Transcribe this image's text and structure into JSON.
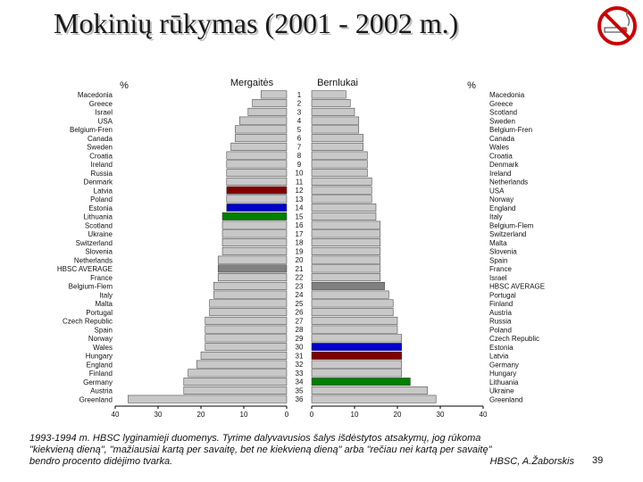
{
  "title": "Mokinių rūkymas (2001 - 2002 m.)",
  "icons": {
    "corner": "no-smoking-icon"
  },
  "colors": {
    "bar": "#c8c8c8",
    "average": "#808080",
    "latvia": "#800000",
    "estonia": "#0000cc",
    "lithuania": "#008000",
    "frame": "#000000"
  },
  "chart_data": {
    "type": "bar",
    "orientation": "horizontal",
    "ranks": [
      1,
      2,
      3,
      4,
      5,
      6,
      7,
      8,
      9,
      10,
      11,
      12,
      13,
      14,
      15,
      16,
      17,
      18,
      19,
      20,
      21,
      22,
      23,
      24,
      25,
      26,
      27,
      28,
      29,
      30,
      31,
      32,
      33,
      34,
      35,
      36
    ],
    "unit_label": "%",
    "xlim": [
      0,
      40
    ],
    "xticks": [
      0,
      10,
      20,
      30,
      40
    ],
    "panels": [
      {
        "name": "Mergaitės",
        "direction": "left",
        "categories": [
          "Macedonia",
          "Greece",
          "Israel",
          "USA",
          "Belgium-Fren",
          "Canada",
          "Sweden",
          "Croatia",
          "Ireland",
          "Russia",
          "Denmark",
          "Latvia",
          "Poland",
          "Estonia",
          "Lithuania",
          "Scotland",
          "Ukraine",
          "Switzerland",
          "Slovenia",
          "Netherlands",
          "HBSC AVERAGE",
          "France",
          "Belgium-Flem",
          "Italy",
          "Malta",
          "Portugal",
          "Czech Republic",
          "Spain",
          "Norway",
          "Wales",
          "Hungary",
          "England",
          "Finland",
          "Germany",
          "Austria",
          "Greenland"
        ],
        "values": [
          6,
          8,
          9,
          11,
          12,
          12,
          13,
          14,
          14,
          14,
          14,
          14,
          14,
          14,
          15,
          15,
          15,
          15,
          15,
          16,
          16,
          16,
          17,
          17,
          18,
          18,
          19,
          19,
          19,
          19,
          20,
          21,
          23,
          24,
          24,
          37
        ],
        "highlights": {
          "Latvia": "latvia",
          "Estonia": "estonia",
          "Lithuania": "lithuania",
          "HBSC AVERAGE": "average"
        }
      },
      {
        "name": "Bernlukai",
        "direction": "right",
        "categories": [
          "Macedonia",
          "Greece",
          "Scotland",
          "Sweden",
          "Belgium-Fren",
          "Canada",
          "Wales",
          "Croatia",
          "Denmark",
          "Ireland",
          "Netherlands",
          "USA",
          "Norway",
          "England",
          "Italy",
          "Belgium-Flem",
          "Switzerland",
          "Malta",
          "Slovenia",
          "Spain",
          "France",
          "Israel",
          "HBSC AVERAGE",
          "Portugal",
          "Finland",
          "Austria",
          "Russia",
          "Poland",
          "Czech Republic",
          "Estonia",
          "Latvia",
          "Germany",
          "Hungary",
          "Lithuania",
          "Ukraine",
          "Greenland"
        ],
        "values": [
          8,
          9,
          10,
          11,
          11,
          12,
          12,
          13,
          13,
          13,
          14,
          14,
          14,
          15,
          15,
          16,
          16,
          16,
          16,
          16,
          16,
          16,
          17,
          18,
          19,
          19,
          20,
          20,
          21,
          21,
          21,
          21,
          21,
          23,
          27,
          29
        ],
        "highlights": {
          "Estonia": "estonia",
          "Latvia": "latvia",
          "Lithuania": "lithuania",
          "HBSC AVERAGE": "average"
        }
      }
    ]
  },
  "footer": {
    "line1": "1993-1994 m. HBSC lyginamieji duomenys. Tyrime dalyvavusios šalys išdėstytos atsakymų, jog rūkoma",
    "line2": "\"kiekvieną dieną\", \"mažiausiai kartą per savaitę, bet ne kiekvieną dieną\" arba \"rečiau nei kartą per savaitę\"",
    "line3": "bendro procento didėjimo tvarka.",
    "author": "HBSC, A.Žaborskis"
  },
  "page_number": "39"
}
